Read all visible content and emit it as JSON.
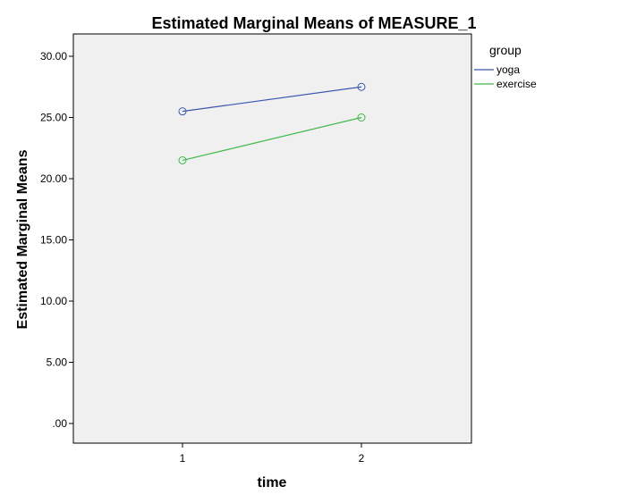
{
  "chart_data": {
    "type": "line",
    "title": "Estimated Marginal Means of MEASURE_1",
    "xlabel": "time",
    "ylabel": "Estimated Marginal Means",
    "categories": [
      "1",
      "2"
    ],
    "ylim": [
      0,
      30
    ],
    "yticks": [
      ".00",
      "5.00",
      "10.00",
      "15.00",
      "20.00",
      "25.00",
      "30.00"
    ],
    "grid": false,
    "legend": {
      "title": "group",
      "position": "top-right"
    },
    "series": [
      {
        "name": "yoga",
        "values": [
          25.5,
          27.5
        ],
        "color": "#3a56b0"
      },
      {
        "name": "exercise",
        "values": [
          21.5,
          25.0
        ],
        "color": "#3db84a"
      }
    ],
    "plot_background": "#f0f0f0"
  }
}
